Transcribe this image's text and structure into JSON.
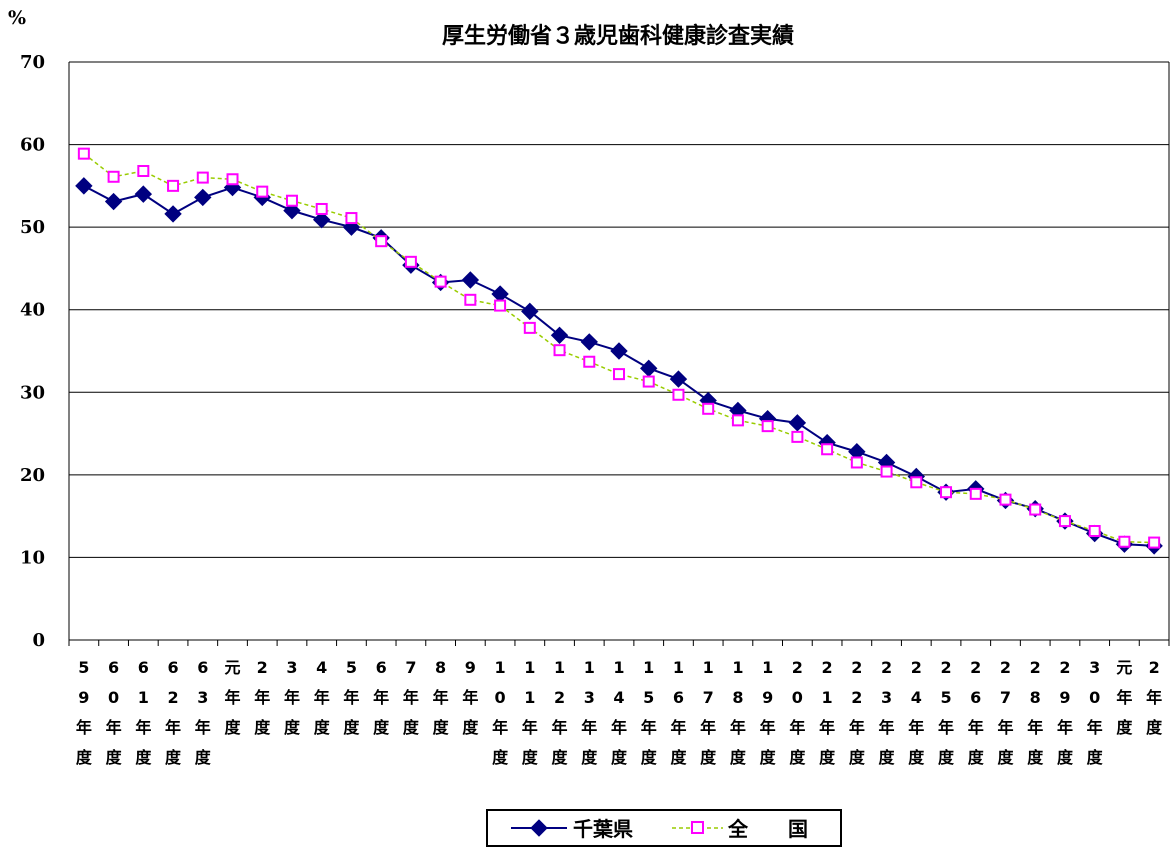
{
  "chart_data": {
    "type": "line",
    "title": "厚生労働省３歳児歯科健康診査実績",
    "unit_label": "%",
    "ylim": [
      0,
      70
    ],
    "yticks": [
      0,
      10,
      20,
      30,
      40,
      50,
      60,
      70
    ],
    "grid": true,
    "legend_position": "bottom-center",
    "categories": [
      "59年度",
      "60年度",
      "61年度",
      "62年度",
      "63年度",
      "元年度",
      "2年度",
      "3年度",
      "4年度",
      "5年度",
      "6年度",
      "7年度",
      "8年度",
      "9年度",
      "10年度",
      "11年度",
      "12年度",
      "13年度",
      "14年度",
      "15年度",
      "16年度",
      "17年度",
      "18年度",
      "19年度",
      "20年度",
      "21年度",
      "22年度",
      "23年度",
      "24年度",
      "25年度",
      "26年度",
      "27年度",
      "28年度",
      "29年度",
      "30年度",
      "元年度",
      "2年度"
    ],
    "series": [
      {
        "name": "千葉県",
        "color": "#000080",
        "marker": "diamond",
        "line_style": "solid",
        "values": [
          55.0,
          53.1,
          54.0,
          51.6,
          53.6,
          54.8,
          53.6,
          52.0,
          50.9,
          50.0,
          48.7,
          45.4,
          43.3,
          43.6,
          41.9,
          39.8,
          36.9,
          36.1,
          35.0,
          32.9,
          31.6,
          29.0,
          27.8,
          26.8,
          26.3,
          23.9,
          22.8,
          21.5,
          19.8,
          17.9,
          18.3,
          16.9,
          15.9,
          14.4,
          12.9,
          11.6,
          11.4
        ]
      },
      {
        "name": "全　　国",
        "color": "#FF00FF",
        "line_color": "#99CC00",
        "marker": "square-open",
        "line_style": "dashed",
        "values": [
          58.9,
          56.1,
          56.8,
          55.0,
          56.0,
          55.8,
          54.3,
          53.2,
          52.2,
          51.1,
          48.3,
          45.8,
          43.4,
          41.2,
          40.5,
          37.8,
          35.1,
          33.7,
          32.2,
          31.3,
          29.7,
          28.0,
          26.6,
          25.9,
          24.6,
          23.1,
          21.5,
          20.4,
          19.1,
          17.9,
          17.7,
          17.0,
          15.8,
          14.4,
          13.2,
          11.9,
          11.8
        ]
      }
    ]
  }
}
